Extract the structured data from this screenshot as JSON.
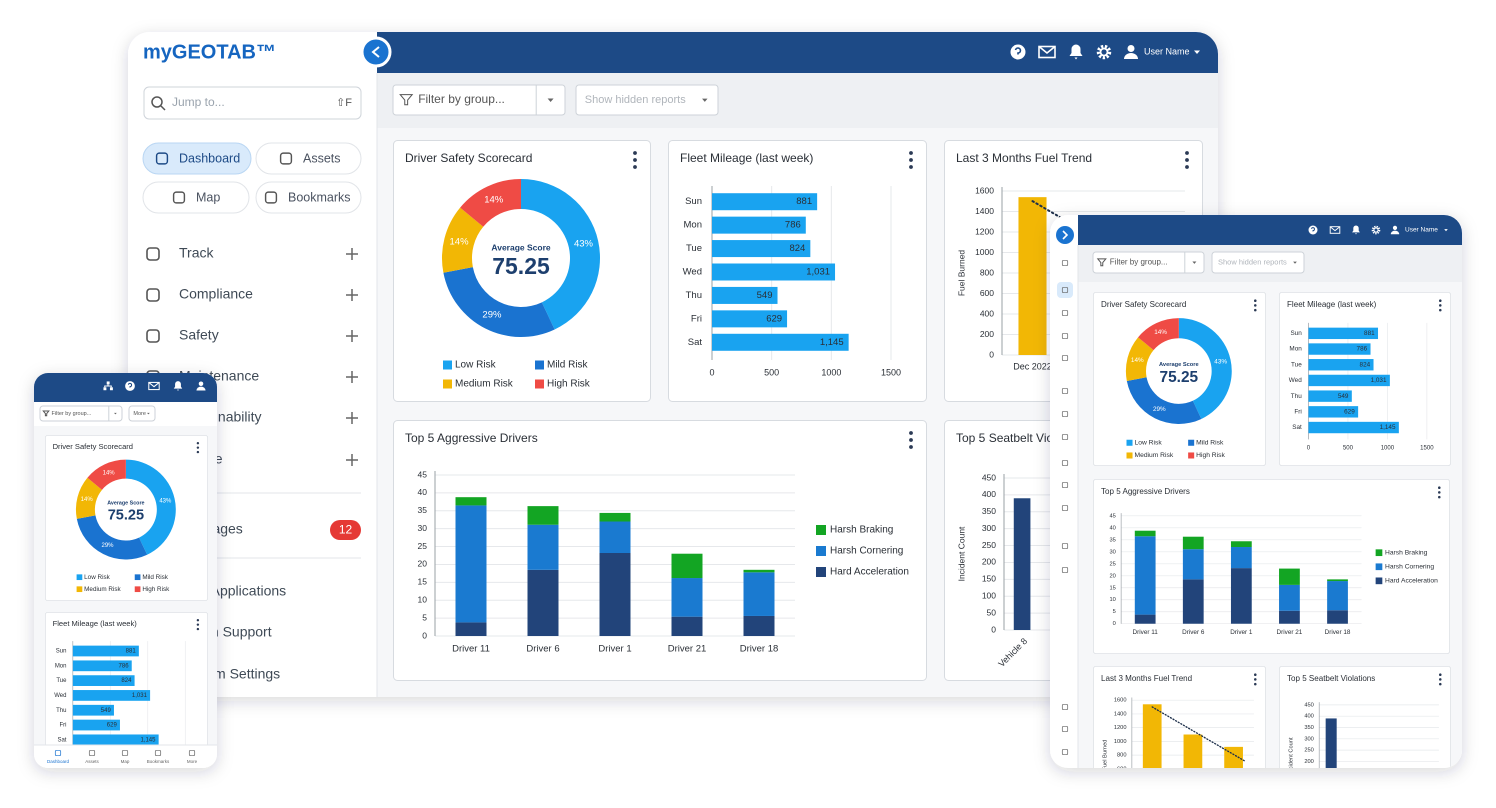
{
  "ui": {
    "logo": "myGEOTAB™",
    "search_placeholder": "Jump to...",
    "search_shortcut": "⇧F",
    "quick_nav": [
      "Dashboard",
      "Assets",
      "Map",
      "Bookmarks"
    ],
    "menu": [
      "Track",
      "Compliance",
      "Safety",
      "Maintenance",
      "Sustainability",
      "People"
    ],
    "messages": {
      "label": "Messages",
      "count": 12
    },
    "menu_bottom": [
      "Web Applications",
      "Admin Support",
      "System Settings"
    ],
    "user_name": "User Name",
    "filter": "Filter by group...",
    "hidden_reports": "Show hidden reports",
    "more": "More",
    "phone_nav": [
      "Dashboard",
      "Assets",
      "Map",
      "Bookmarks",
      "More"
    ]
  },
  "chart_data": [
    {
      "type": "donut",
      "title": "Driver Safety Scorecard",
      "center_label": "Average Score",
      "center_value": 75.25,
      "categories": [
        "Low Risk",
        "Mild Risk",
        "Medium Risk",
        "High Risk"
      ],
      "values": [
        43,
        29,
        14,
        14
      ],
      "value_labels": [
        "43%",
        "29%",
        "14%",
        "14%"
      ],
      "colors": [
        "#19a3f0",
        "#1a73d0",
        "#f2b705",
        "#ef4b45"
      ]
    },
    {
      "type": "hbar",
      "title": "Fleet Mileage (last week)",
      "categories": [
        "Sun",
        "Mon",
        "Tue",
        "Wed",
        "Thu",
        "Fri",
        "Sat"
      ],
      "values": [
        881,
        786,
        824,
        1031,
        549,
        629,
        1145
      ],
      "value_labels": [
        "881",
        "786",
        "824",
        "1,031",
        "549",
        "629",
        "1,145"
      ],
      "color": "#19a3f0",
      "xlim": [
        0,
        1500
      ],
      "xticks": [
        0,
        500,
        1000,
        1500
      ]
    },
    {
      "type": "bar",
      "title": "Last 3 Months Fuel Trend",
      "ylabel": "Fuel Burned",
      "categories": [
        "Dec 2022",
        null,
        null
      ],
      "values": [
        1540,
        1100,
        920
      ],
      "color": "#f2b705",
      "ylim": [
        0,
        1600
      ],
      "yticks": [
        0,
        200,
        400,
        600,
        800,
        1000,
        1200,
        1400,
        1600
      ],
      "trendline": true
    },
    {
      "type": "stacked_bar",
      "title": "Top 5 Aggressive Drivers",
      "categories": [
        "Driver 11",
        "Driver 6",
        "Driver 1",
        "Driver 21",
        "Driver 18"
      ],
      "series": [
        {
          "name": "Harsh Braking",
          "color": "#13a523",
          "values": [
            2.3,
            5.2,
            2.4,
            6.8,
            0.7
          ]
        },
        {
          "name": "Harsh Cornering",
          "color": "#1a7ad0",
          "values": [
            32.7,
            12.6,
            8.8,
            10.8,
            12.2
          ]
        },
        {
          "name": "Hard Acceleration",
          "color": "#22447a",
          "values": [
            3.8,
            18.5,
            23.2,
            5.4,
            5.6
          ]
        }
      ],
      "ylim": [
        0,
        45
      ],
      "yticks": [
        0,
        5,
        10,
        15,
        20,
        25,
        30,
        35,
        40,
        45
      ]
    },
    {
      "type": "bar",
      "title": "Top 5 Seatbelt Violations",
      "ylabel": "Incident Count",
      "categories": [
        "Vehicle 8"
      ],
      "values": [
        390
      ],
      "color": "#22447a",
      "rotated_labels": true,
      "ylim": [
        0,
        450
      ],
      "yticks": [
        0,
        50,
        100,
        150,
        200,
        250,
        300,
        350,
        400,
        450
      ]
    }
  ]
}
